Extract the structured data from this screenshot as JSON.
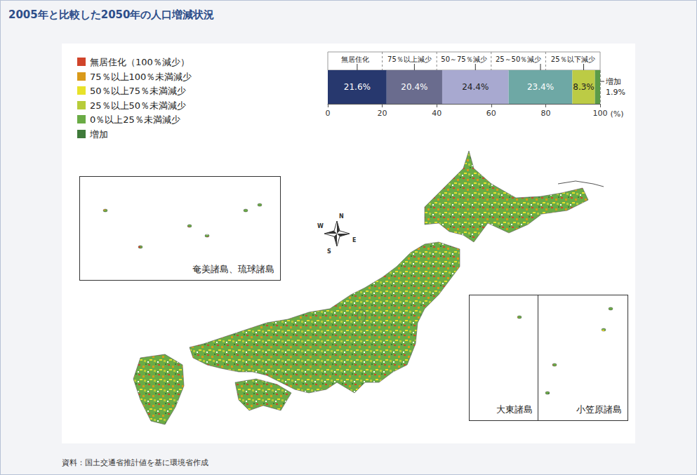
{
  "title": "2005年と比較した2050年の人口増減状況",
  "map": {
    "legend": [
      {
        "label": "無居住化（100％減少）",
        "color": "#d0442a"
      },
      {
        "label": "75％以上100％未満減少",
        "color": "#d99a1a"
      },
      {
        "label": "50％以上75％未満減少",
        "color": "#e8e22a"
      },
      {
        "label": "25％以上50％未満減少",
        "color": "#b7cc3a"
      },
      {
        "label": "0％以上25％未満減少",
        "color": "#6aab45"
      },
      {
        "label": "増加",
        "color": "#3f7a3a"
      }
    ],
    "insets": [
      "奄美諸島、琉球諸島",
      "大東諸島",
      "小笠原諸島"
    ],
    "compass": [
      "N",
      "E",
      "S",
      "W"
    ]
  },
  "source": "資料：国土交通省推計値を基に環境省作成",
  "chart_data": {
    "type": "bar",
    "orientation": "horizontal",
    "stacked": true,
    "data_labels": true,
    "grid": true,
    "tick_labels": "x",
    "categories": [
      null
    ],
    "series": [
      {
        "name": "無居住化",
        "color": "#27386e",
        "values": [
          21.6
        ],
        "value_labels": [
          "21.6%"
        ]
      },
      {
        "name": "75％以上減少",
        "color": "#6a6c8e",
        "values": [
          20.4
        ],
        "value_labels": [
          "20.4%"
        ]
      },
      {
        "name": "50～75％減少",
        "color": "#a8a9d0",
        "values": [
          24.4
        ],
        "value_labels": [
          "24.4%"
        ]
      },
      {
        "name": "25～50％減少",
        "color": "#6ea8a5",
        "values": [
          23.4
        ],
        "value_labels": [
          "23.4%"
        ]
      },
      {
        "name": "25％以下減少",
        "color": "#bccb45",
        "values": [
          8.3
        ],
        "value_labels": [
          "8.3%"
        ]
      },
      {
        "name": "増加",
        "color": "#5b9b48",
        "values": [
          1.9
        ],
        "value_labels": [
          "1.9%"
        ]
      }
    ],
    "xlim": [
      0,
      100
    ],
    "xticks": [
      0,
      20,
      40,
      60,
      80,
      100
    ],
    "xlabel": "(%)"
  }
}
